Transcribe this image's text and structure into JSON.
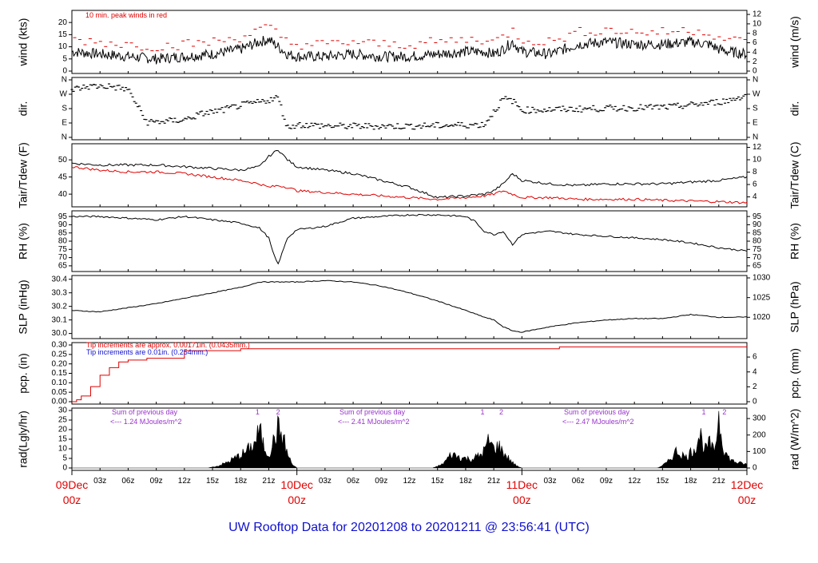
{
  "title": "UW Rooftop Data for 20201208  to  20201211 @ 23:56:41  (UTC)",
  "colors": {
    "red": "#e00000",
    "blue": "#1010d0",
    "purple": "#9933cc",
    "black": "#000000"
  },
  "x_axis": {
    "hour_ticks": [
      "03z",
      "06z",
      "09z",
      "12z",
      "15z",
      "18z",
      "21z",
      "03z",
      "06z",
      "09z",
      "12z",
      "15z",
      "18z",
      "21z",
      "03z",
      "06z",
      "09z",
      "12z",
      "15z",
      "18z",
      "21z"
    ],
    "days": [
      {
        "date": "09Dec",
        "hour": "00z",
        "hours_from_start": 0
      },
      {
        "date": "10Dec",
        "hour": "00z",
        "hours_from_start": 24
      },
      {
        "date": "11Dec",
        "hour": "00z",
        "hours_from_start": 48
      },
      {
        "date": "12Dec",
        "hour": "00z",
        "hours_from_start": 72
      }
    ]
  },
  "panels": {
    "wind": {
      "left_label": "wind (kts)",
      "right_label": "wind (m/s)",
      "left_ticks": [
        "0",
        "5",
        "10",
        "15",
        "20"
      ],
      "right_ticks": [
        "0",
        "2",
        "4",
        "6",
        "8",
        "10",
        "12"
      ],
      "note": "10 min. peak winds in red"
    },
    "dir": {
      "left_label": "dir.",
      "right_label": "dir.",
      "ticks": [
        "N",
        "E",
        "S",
        "W",
        "N"
      ]
    },
    "temp": {
      "left_label": "Tair/Tdew (F)",
      "right_label": "Tair/Tdew (C)",
      "left_ticks": [
        "40",
        "45",
        "50"
      ],
      "right_ticks": [
        "4",
        "6",
        "8",
        "10",
        "12"
      ]
    },
    "rh": {
      "left_label": "RH (%)",
      "right_label": "RH (%)",
      "ticks": [
        "65",
        "70",
        "75",
        "80",
        "85",
        "90",
        "95"
      ]
    },
    "slp": {
      "left_label": "SLP (inHg)",
      "right_label": "SLP (hPa)",
      "left_ticks": [
        "30.0",
        "30.1",
        "30.2",
        "30.3",
        "30.4"
      ],
      "right_ticks": [
        "1020",
        "1025",
        "1030"
      ]
    },
    "pcp": {
      "left_label": "pcp. (in)",
      "right_label": "pcp. (mm)",
      "left_ticks": [
        "0.00",
        "0.05",
        "0.10",
        "0.15",
        "0.20",
        "0.25",
        "0.30"
      ],
      "right_ticks": [
        "0",
        "2",
        "4",
        "6"
      ],
      "note_red": "Tip increments are approx. 0.00171in. (0.0435mm.)",
      "note_blue": "Tip increments are 0.01in. (0.254mm.)"
    },
    "rad": {
      "left_label": "rad(Lgly/hr)",
      "right_label": "rad (W/m^2)",
      "left_ticks": [
        "0",
        "5",
        "10",
        "15",
        "20",
        "25",
        "30"
      ],
      "right_ticks": [
        "0",
        "100",
        "200",
        "300"
      ],
      "sums": [
        {
          "line1": "Sum of previous day",
          "line2": "<--- 1.24 MJoules/m^2"
        },
        {
          "line1": "Sum of previous day",
          "line2": "<--- 2.41 MJoules/m^2"
        },
        {
          "line1": "Sum of previous day",
          "line2": "<--- 2.47 MJoules/m^2"
        }
      ],
      "markers": [
        {
          "hours_from_start": 19.8,
          "label": "1"
        },
        {
          "hours_from_start": 22.0,
          "label": "2"
        },
        {
          "hours_from_start": 43.8,
          "label": "1"
        },
        {
          "hours_from_start": 45.8,
          "label": "2"
        },
        {
          "hours_from_start": 67.4,
          "label": "1"
        },
        {
          "hours_from_start": 69.6,
          "label": "2"
        }
      ]
    }
  },
  "chart_data": {
    "type": "line",
    "x_unit": "hours since 09Dec 00z",
    "xlim": [
      0,
      72
    ],
    "series": [
      {
        "panel": "wind",
        "name": "",
        "color": "#000000",
        "ylim": [
          0,
          24
        ],
        "x": [
          0,
          3,
          6,
          9,
          12,
          15,
          18,
          20,
          21,
          22,
          23,
          24,
          27,
          30,
          33,
          36,
          39,
          42,
          44,
          45,
          46,
          47,
          48,
          51,
          54,
          57,
          60,
          63,
          66,
          68,
          69,
          70,
          72
        ],
        "y": [
          8,
          7,
          6,
          5,
          6,
          7,
          9,
          12,
          13,
          10,
          7,
          6,
          6,
          7,
          6,
          6,
          7,
          8,
          8,
          7,
          9,
          12,
          8,
          7,
          11,
          12,
          11,
          11,
          12,
          11,
          9,
          8,
          7
        ]
      },
      {
        "panel": "temp",
        "name": "",
        "color": "#000000",
        "ylim": [
          37,
          54
        ],
        "x": [
          0,
          3,
          6,
          9,
          12,
          15,
          18,
          20,
          21,
          22,
          23,
          24,
          27,
          30,
          33,
          36,
          39,
          42,
          44,
          45,
          46,
          47,
          48,
          51,
          54,
          57,
          60,
          63,
          66,
          69,
          72
        ],
        "y": [
          49,
          48.5,
          48.5,
          48.5,
          48,
          47.5,
          47,
          48,
          51,
          53,
          50,
          48,
          47,
          46,
          44,
          42,
          39,
          39.5,
          40,
          41,
          43,
          46,
          44,
          43,
          42.5,
          43,
          43,
          43,
          43.5,
          44,
          45
        ]
      },
      {
        "panel": "temp",
        "name": "",
        "color": "#e00000",
        "ylim": [
          37,
          54
        ],
        "x": [
          0,
          3,
          6,
          9,
          12,
          15,
          18,
          20,
          21,
          22,
          23,
          24,
          27,
          30,
          33,
          36,
          39,
          42,
          44,
          45,
          46,
          47,
          48,
          51,
          54,
          57,
          60,
          63,
          66,
          69,
          72
        ],
        "y": [
          48,
          47,
          46.5,
          46.5,
          46,
          45,
          44,
          43,
          42,
          42.5,
          42,
          41,
          40.5,
          40,
          39.5,
          39,
          38.5,
          39,
          39.5,
          40,
          41,
          40,
          39,
          39,
          38.5,
          38.5,
          38.5,
          38.2,
          38,
          37.8,
          37.5
        ]
      },
      {
        "panel": "rh",
        "name": "",
        "color": "#000000",
        "ylim": [
          63,
          97
        ],
        "x": [
          0,
          3,
          6,
          9,
          12,
          15,
          18,
          20,
          21,
          21.5,
          22,
          22.5,
          23,
          24,
          27,
          30,
          33,
          36,
          39,
          42,
          43,
          44,
          45,
          46,
          47,
          48,
          49,
          51,
          54,
          57,
          60,
          63,
          66,
          69,
          72
        ],
        "y": [
          95,
          95,
          94,
          93,
          95,
          93,
          91,
          88,
          82,
          72,
          66,
          74,
          82,
          87,
          89,
          94,
          95,
          96,
          96,
          95,
          92,
          86,
          84,
          86,
          78,
          84,
          85,
          86,
          84,
          83,
          82,
          81,
          79,
          76,
          74
        ]
      },
      {
        "panel": "slp",
        "name": "",
        "color": "#000000",
        "ylim": [
          29.98,
          30.41
        ],
        "x": [
          0,
          3,
          6,
          9,
          12,
          15,
          18,
          20,
          21,
          24,
          27,
          30,
          33,
          36,
          39,
          42,
          44,
          45,
          46,
          47,
          48,
          51,
          54,
          57,
          60,
          63,
          66,
          69,
          72
        ],
        "y": [
          30.17,
          30.16,
          30.19,
          30.22,
          30.26,
          30.3,
          30.34,
          30.38,
          30.38,
          30.38,
          30.39,
          30.38,
          30.35,
          30.3,
          30.24,
          30.17,
          30.12,
          30.1,
          30.05,
          30.02,
          30.01,
          30.05,
          30.08,
          30.1,
          30.11,
          30.11,
          30.14,
          30.12,
          30.12
        ]
      },
      {
        "panel": "pcp",
        "name": "",
        "color": "#e00000",
        "ylim": [
          0,
          0.3
        ],
        "x": [
          0,
          0.5,
          1,
          2,
          3,
          4,
          5,
          6,
          7,
          8,
          12,
          18,
          24,
          30,
          36,
          42,
          47,
          48,
          50,
          52,
          54,
          60,
          66,
          72
        ],
        "y": [
          0,
          0.01,
          0.03,
          0.08,
          0.14,
          0.18,
          0.21,
          0.22,
          0.22,
          0.23,
          0.27,
          0.28,
          0.28,
          0.28,
          0.28,
          0.28,
          0.28,
          0.28,
          0.28,
          0.29,
          0.29,
          0.29,
          0.29,
          0.29
        ]
      },
      {
        "panel": "rad",
        "name": "",
        "color": "#000000",
        "ylim": [
          0,
          30
        ],
        "fill": true,
        "x": [
          0,
          14.5,
          15.5,
          16.5,
          17.5,
          18.5,
          19.5,
          20,
          20.5,
          21,
          21.5,
          22,
          22.5,
          23,
          23.5,
          24,
          38.5,
          39.5,
          40.5,
          41.5,
          42.5,
          43.5,
          44,
          44.5,
          45,
          45.5,
          46,
          46.5,
          47,
          47.5,
          48,
          62.5,
          63.5,
          64.5,
          65.5,
          66.5,
          67,
          67.5,
          68,
          68.5,
          69,
          69.5,
          70,
          70.5,
          71,
          72
        ],
        "y": [
          0,
          0,
          1,
          3,
          6,
          9,
          14,
          22,
          12,
          8,
          15,
          23,
          18,
          8,
          2,
          0,
          0,
          2,
          8,
          6,
          5,
          7,
          10,
          16,
          11,
          13,
          9,
          6,
          3,
          1,
          0,
          0,
          3,
          10,
          6,
          12,
          20,
          10,
          14,
          9,
          30,
          12,
          6,
          4,
          3,
          2
        ]
      }
    ]
  }
}
